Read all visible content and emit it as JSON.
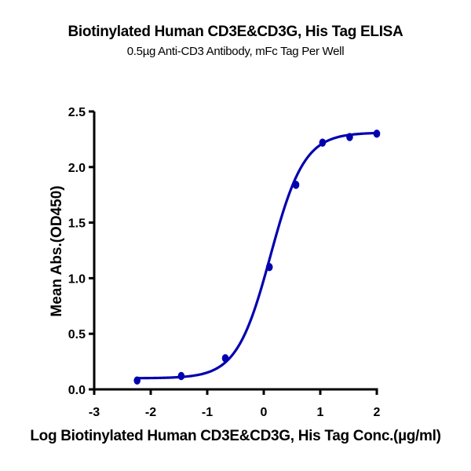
{
  "chart_data": {
    "type": "line",
    "title": "Biotinylated Human CD3E&CD3G, His Tag ELISA",
    "subtitle": "0.5µg Anti-CD3 Antibody, mFc Tag Per Well",
    "xlabel": "Log Biotinylated Human CD3E&CD3G, His Tag Conc.(µg/ml)",
    "ylabel": "Mean Abs.(OD450)",
    "xlim": [
      -3,
      2
    ],
    "ylim": [
      0,
      2.5
    ],
    "xticks": [
      "-3",
      "-2",
      "-1",
      "0",
      "1",
      "2"
    ],
    "yticks": [
      "0.0",
      "0.5",
      "1.0",
      "1.5",
      "2.0",
      "2.5"
    ],
    "grid": false,
    "legend": null,
    "series": [
      {
        "name": "Biotinylated Human CD3E&CD3G, His Tag",
        "color": "#0000b0",
        "marker": "circle",
        "fit": "4PL sigmoidal",
        "x": [
          -2.24,
          -1.46,
          -0.68,
          0.1,
          0.57,
          1.04,
          1.52,
          2.0
        ],
        "y": [
          0.08,
          0.12,
          0.28,
          1.1,
          1.84,
          2.22,
          2.27,
          2.3
        ]
      }
    ]
  }
}
